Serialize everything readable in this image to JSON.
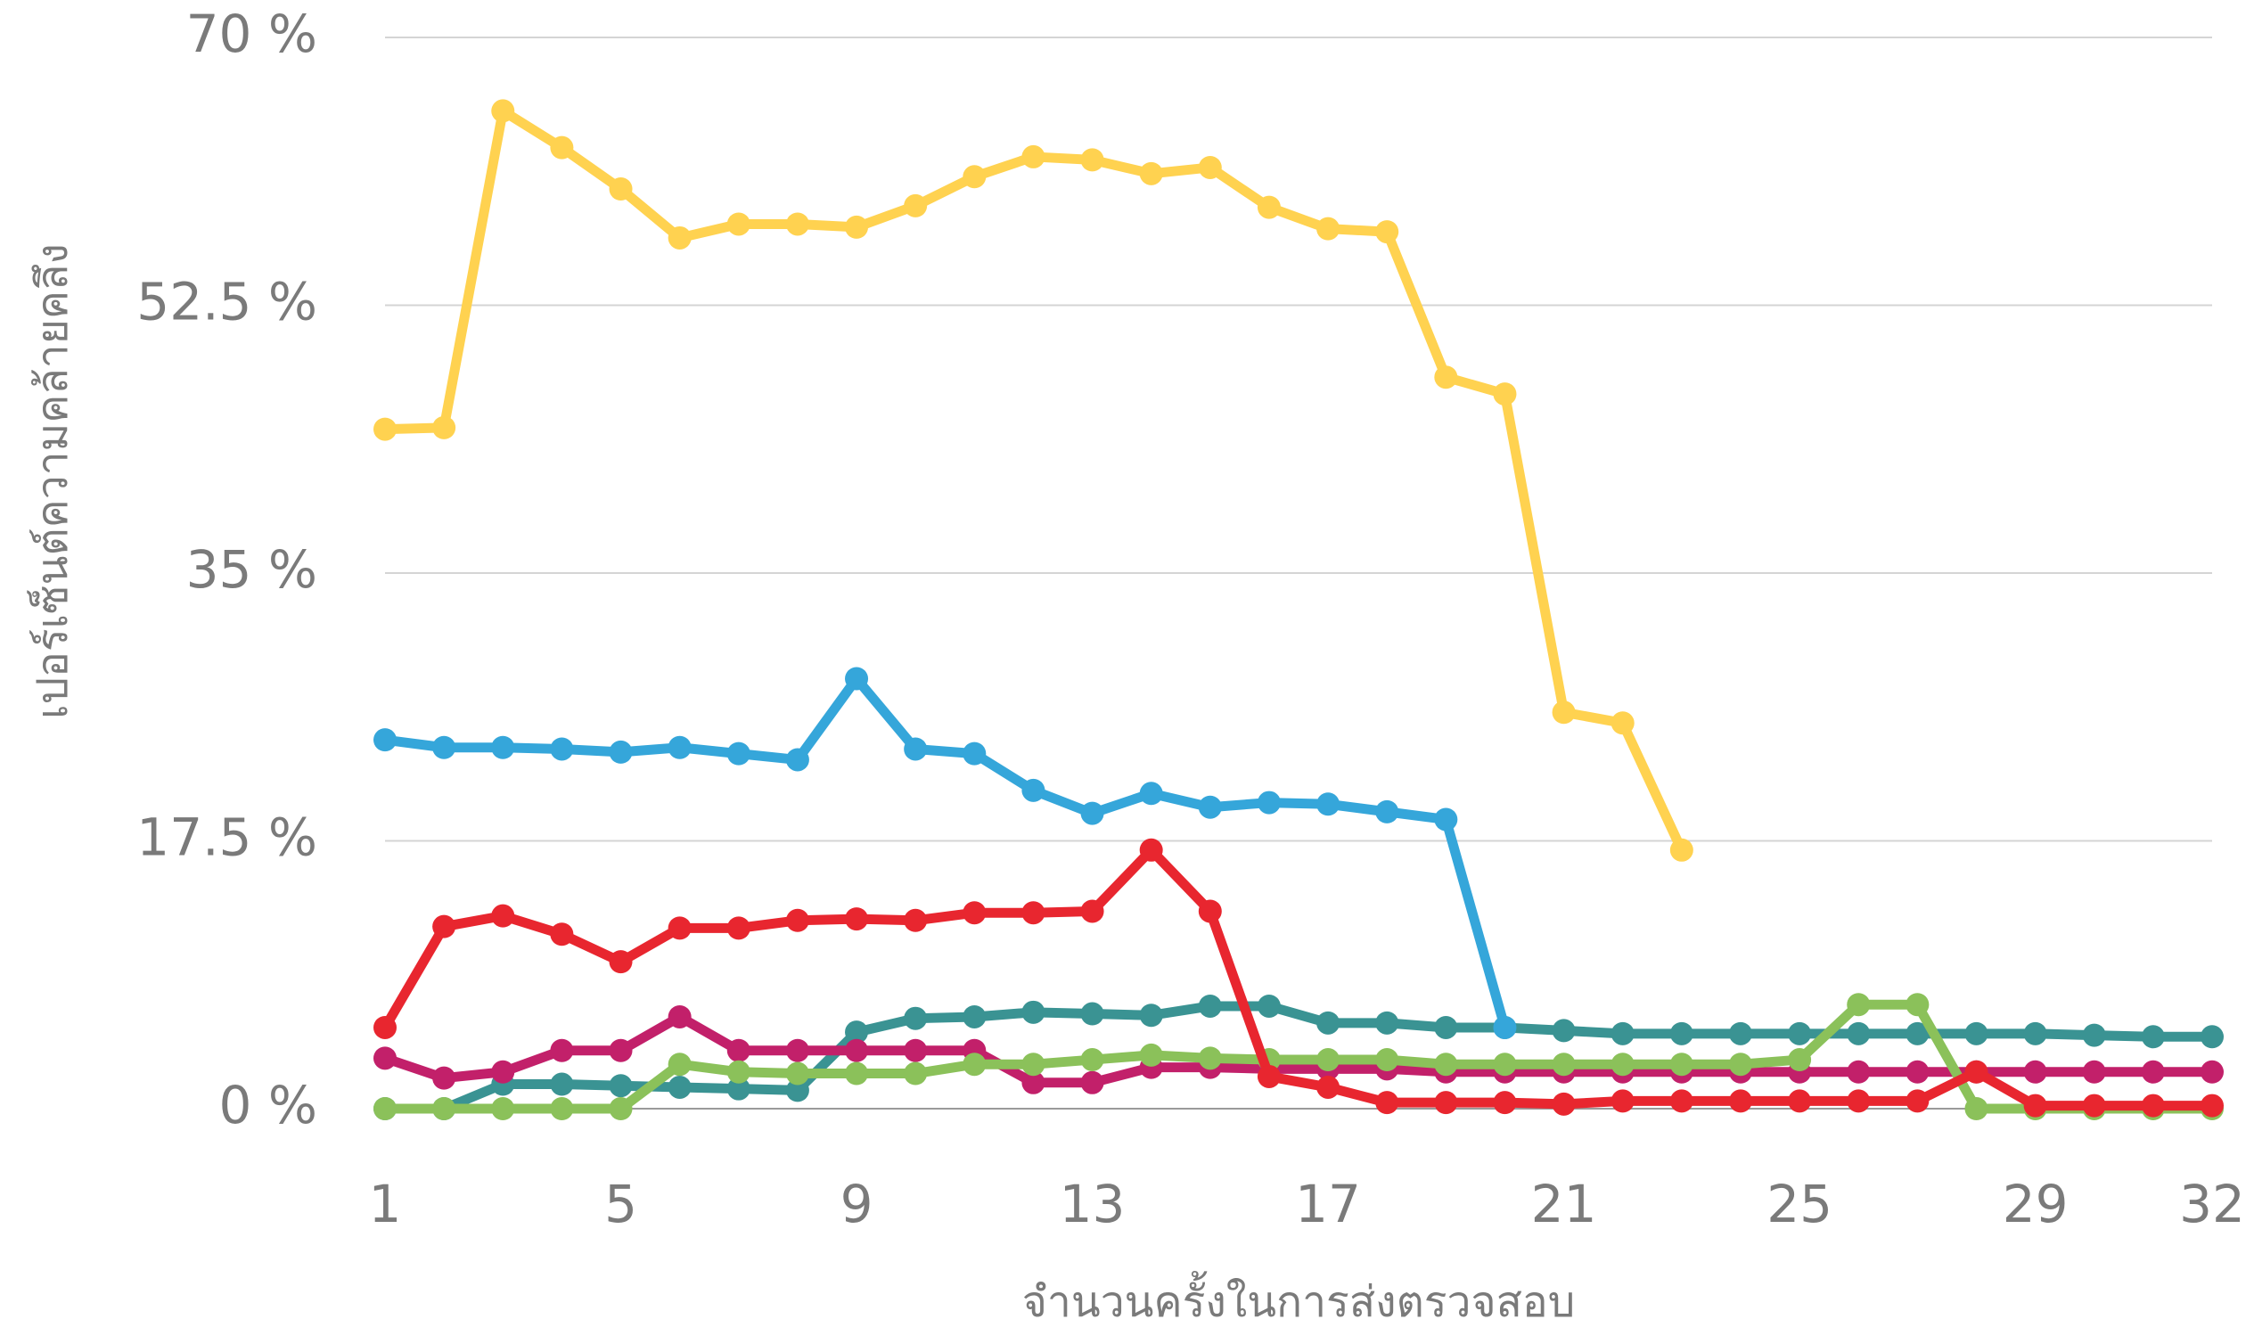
{
  "chart_data": {
    "type": "line",
    "ylabel": "เปอร์เซ็นต์ความคล้ายคลึง",
    "xlabel": "จำนวนครั้งในการส่งตรวจสอบ",
    "x": [
      1,
      2,
      3,
      4,
      5,
      6,
      7,
      8,
      9,
      10,
      11,
      12,
      13,
      14,
      15,
      16,
      17,
      18,
      19,
      20,
      21,
      22,
      23,
      24,
      25,
      26,
      27,
      28,
      29,
      30,
      31,
      32
    ],
    "xlim": [
      1,
      32
    ],
    "xticks": [
      1,
      5,
      9,
      13,
      17,
      21,
      25,
      29,
      32
    ],
    "ylim": [
      0,
      70
    ],
    "yticks": [
      {
        "value": 0,
        "label": "0 %"
      },
      {
        "value": 17.5,
        "label": "17.5 %"
      },
      {
        "value": 35,
        "label": "35 %"
      },
      {
        "value": 52.5,
        "label": "52.5 %"
      },
      {
        "value": 70,
        "label": "70 %"
      }
    ],
    "grid": true,
    "series": [
      {
        "color": "#3a9393",
        "values": [
          0,
          0,
          1.6,
          1.6,
          1.5,
          1.4,
          1.3,
          1.2,
          5.0,
          5.9,
          6.0,
          6.3,
          6.2,
          6.1,
          6.7,
          6.7,
          5.6,
          5.6,
          5.3,
          5.3,
          5.1,
          4.9,
          4.9,
          4.9,
          4.9,
          4.9,
          4.9,
          4.9,
          4.9,
          4.8,
          4.7,
          4.7
        ]
      },
      {
        "color": "#c2206a",
        "values": [
          3.3,
          2.0,
          2.4,
          3.8,
          3.8,
          6.0,
          3.8,
          3.8,
          3.8,
          3.8,
          3.8,
          1.7,
          1.7,
          2.7,
          2.7,
          2.6,
          2.6,
          2.6,
          2.4,
          2.4,
          2.4,
          2.4,
          2.4,
          2.4,
          2.4,
          2.4,
          2.4,
          2.4,
          2.4,
          2.4,
          2.4,
          2.4
        ]
      },
      {
        "color": "#8bc15a",
        "values": [
          0,
          0,
          0,
          0,
          0,
          2.9,
          2.4,
          2.3,
          2.3,
          2.3,
          2.9,
          2.9,
          3.2,
          3.5,
          3.3,
          3.2,
          3.2,
          3.2,
          2.9,
          2.9,
          2.9,
          2.9,
          2.9,
          2.9,
          3.2,
          6.8,
          6.8,
          0,
          0,
          0,
          0,
          0
        ]
      },
      {
        "color": "#e8262f",
        "values": [
          5.3,
          11.9,
          12.6,
          11.4,
          9.6,
          11.8,
          11.8,
          12.3,
          12.4,
          12.3,
          12.8,
          12.8,
          12.9,
          16.9,
          12.9,
          2.1,
          1.4,
          0.4,
          0.4,
          0.4,
          0.3,
          0.5,
          0.5,
          0.5,
          0.5,
          0.5,
          0.5,
          2.4,
          0.2,
          0.2,
          0.2,
          0.2
        ]
      },
      {
        "color": "#35a6da",
        "values": [
          24.1,
          23.6,
          23.6,
          23.5,
          23.3,
          23.6,
          23.2,
          22.8,
          28.1,
          23.5,
          23.2,
          20.8,
          19.3,
          20.6,
          19.7,
          20.0,
          19.9,
          19.4,
          18.9,
          5.3,
          null,
          null,
          null,
          null,
          null,
          null,
          null,
          null,
          null,
          null,
          null,
          null
        ]
      },
      {
        "color": "#ffd250",
        "values": [
          44.4,
          44.5,
          65.2,
          62.8,
          60.1,
          56.9,
          57.8,
          57.8,
          57.6,
          59.0,
          60.9,
          62.2,
          62.0,
          61.1,
          61.5,
          58.9,
          57.5,
          57.3,
          47.8,
          46.7,
          25.9,
          25.2,
          16.9,
          null,
          null,
          null,
          null,
          null,
          null,
          null,
          null,
          null
        ]
      }
    ]
  }
}
